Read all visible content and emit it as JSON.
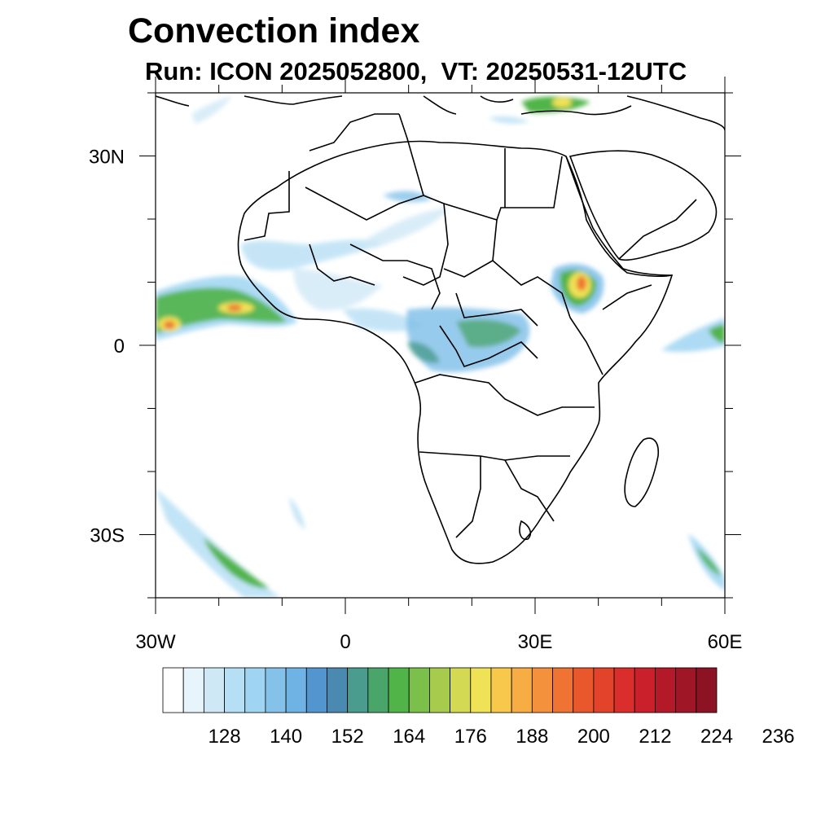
{
  "title": "Convection index",
  "subtitle": "Run: ICON 2025052800,  VT: 20250531-12UTC",
  "map": {
    "extent": {
      "lon": [
        -30,
        60
      ],
      "lat": [
        -40,
        40
      ]
    },
    "lat_ticks": [
      {
        "value": 30,
        "label": "30N"
      },
      {
        "value": 0,
        "label": "0"
      },
      {
        "value": -30,
        "label": "30S"
      }
    ],
    "lon_ticks": [
      {
        "value": -30,
        "label": "30W"
      },
      {
        "value": 0,
        "label": "0"
      },
      {
        "value": 30,
        "label": "30E"
      },
      {
        "value": 60,
        "label": "60E"
      }
    ]
  },
  "colorbar": {
    "colors": [
      "#ffffff",
      "#e8f4fb",
      "#cfe8f6",
      "#b6dff5",
      "#9fd5f2",
      "#85c2ea",
      "#6eb3e3",
      "#5396cf",
      "#4a8ab0",
      "#4a9c8e",
      "#4aa56a",
      "#51b449",
      "#7bc04a",
      "#a7cc4d",
      "#d4d954",
      "#f0e257",
      "#f7c84b",
      "#f7ad44",
      "#f4913c",
      "#ef7332",
      "#e9582c",
      "#e2432a",
      "#d92e2b",
      "#c9202c",
      "#b4192a",
      "#9f1627",
      "#8c1324"
    ],
    "tick_labels": [
      "128",
      "140",
      "152",
      "164",
      "176",
      "188",
      "200",
      "212",
      "224",
      "236"
    ]
  }
}
